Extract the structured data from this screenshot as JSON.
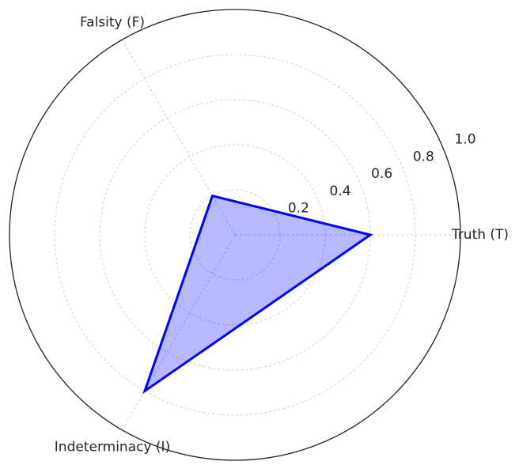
{
  "chart_data": {
    "type": "radar",
    "categories": [
      "Truth (T)",
      "Falsity (F)",
      "Indeterminacy (I)"
    ],
    "values": [
      0.6,
      0.2,
      0.8
    ],
    "color": "#0000ff",
    "rlim": [
      0,
      1
    ],
    "rticks": [
      0.2,
      0.4,
      0.6,
      0.8,
      {
        "value": 1,
        "label": "1.0"
      }
    ],
    "grid": true
  }
}
